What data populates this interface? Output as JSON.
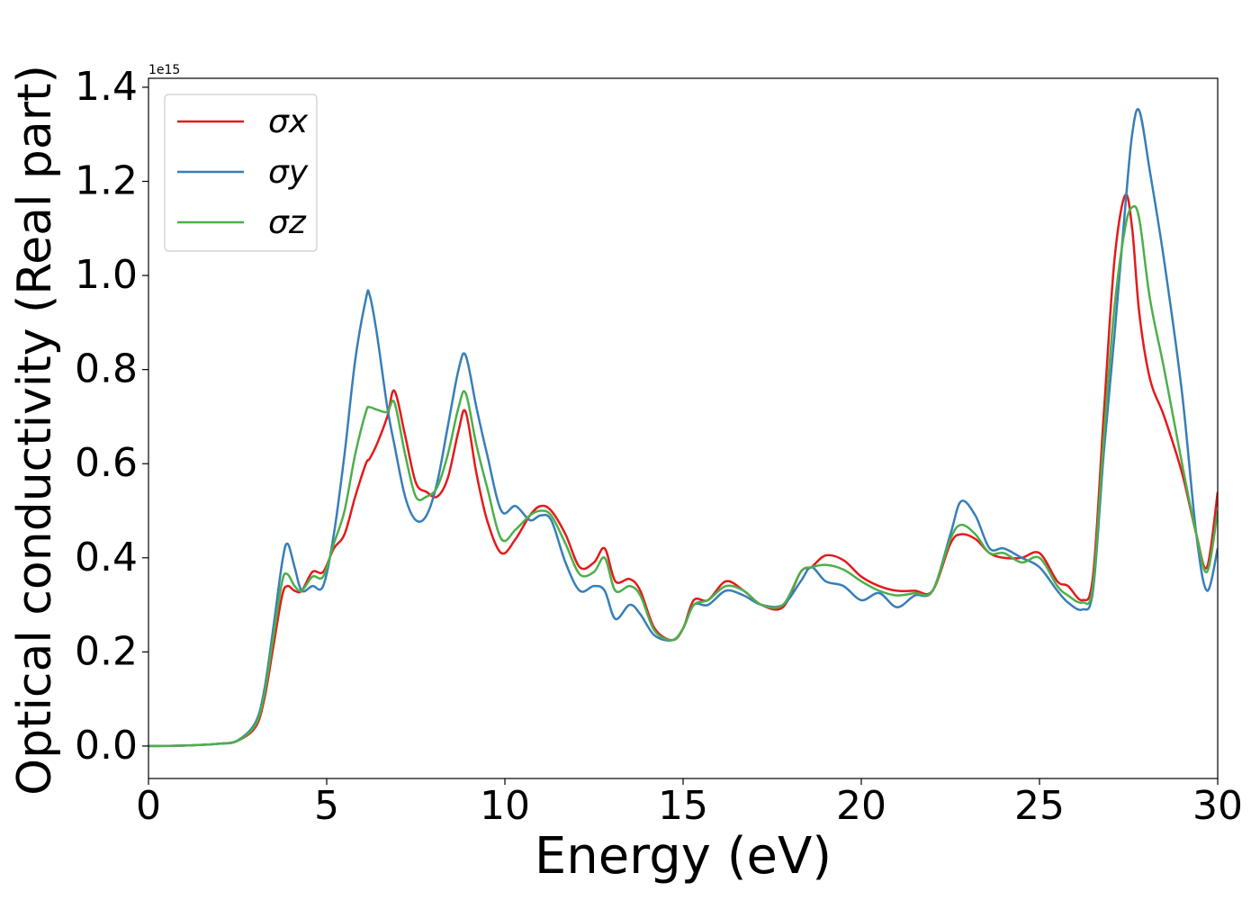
{
  "chart_data": {
    "type": "line",
    "xlabel": "Energy (eV)",
    "ylabel": "Optical conductivity (Real part)",
    "y_offset_label": "1e15",
    "xlim": [
      0,
      30
    ],
    "ylim": [
      -0.069,
      1.419
    ],
    "xticks": [
      0,
      5,
      10,
      15,
      20,
      25,
      30
    ],
    "yticks": [
      {
        "value": 0,
        "label": "0.0"
      },
      0.2,
      0.4,
      0.6,
      0.8,
      {
        "value": 1,
        "label": "1.0"
      },
      1.2,
      1.4
    ],
    "grid": false,
    "legend": "upper left",
    "x": [
      0,
      1,
      2,
      2.5,
      3,
      3.25,
      3.5,
      3.75,
      3.9,
      4.1,
      4.3,
      4.6,
      4.9,
      5.2,
      5.5,
      5.8,
      6.1,
      6.2,
      6.4,
      6.7,
      6.9,
      7.2,
      7.5,
      7.8,
      8.1,
      8.4,
      8.7,
      8.9,
      9.2,
      9.5,
      9.9,
      10.3,
      10.7,
      11.0,
      11.3,
      11.7,
      12.1,
      12.5,
      12.8,
      13.1,
      13.5,
      13.8,
      14.2,
      14.7,
      15.0,
      15.3,
      15.7,
      16.2,
      16.7,
      17.2,
      17.8,
      18.3,
      18.6,
      19.0,
      19.5,
      20.0,
      20.5,
      21.0,
      21.5,
      22.0,
      22.5,
      22.8,
      23.2,
      23.6,
      24.0,
      24.5,
      25.0,
      25.5,
      25.8,
      26.2,
      26.5,
      26.8,
      27.1,
      27.4,
      27.6,
      27.8,
      28.1,
      28.5,
      29.0,
      29.4,
      29.7,
      30.0
    ],
    "series": [
      {
        "name": "σx",
        "color": "#e41a1c",
        "values": [
          0,
          0.001,
          0.005,
          0.011,
          0.04,
          0.1,
          0.21,
          0.32,
          0.34,
          0.33,
          0.33,
          0.37,
          0.37,
          0.42,
          0.45,
          0.53,
          0.6,
          0.61,
          0.64,
          0.7,
          0.755,
          0.66,
          0.56,
          0.54,
          0.53,
          0.57,
          0.67,
          0.71,
          0.58,
          0.48,
          0.41,
          0.44,
          0.49,
          0.51,
          0.5,
          0.45,
          0.38,
          0.39,
          0.42,
          0.35,
          0.355,
          0.33,
          0.25,
          0.225,
          0.25,
          0.31,
          0.31,
          0.35,
          0.33,
          0.3,
          0.295,
          0.37,
          0.38,
          0.405,
          0.395,
          0.36,
          0.34,
          0.33,
          0.33,
          0.33,
          0.43,
          0.45,
          0.44,
          0.41,
          0.4,
          0.4,
          0.41,
          0.35,
          0.34,
          0.31,
          0.36,
          0.7,
          1.03,
          1.17,
          1.1,
          0.92,
          0.78,
          0.7,
          0.58,
          0.45,
          0.38,
          0.54
        ]
      },
      {
        "name": "σy",
        "color": "#377eb8",
        "values": [
          0,
          0.001,
          0.005,
          0.012,
          0.05,
          0.12,
          0.25,
          0.39,
          0.43,
          0.38,
          0.33,
          0.34,
          0.34,
          0.45,
          0.62,
          0.82,
          0.95,
          0.96,
          0.88,
          0.72,
          0.64,
          0.53,
          0.48,
          0.49,
          0.56,
          0.68,
          0.8,
          0.83,
          0.72,
          0.62,
          0.5,
          0.51,
          0.48,
          0.49,
          0.48,
          0.39,
          0.33,
          0.34,
          0.33,
          0.27,
          0.3,
          0.28,
          0.235,
          0.225,
          0.25,
          0.3,
          0.3,
          0.33,
          0.32,
          0.3,
          0.3,
          0.35,
          0.38,
          0.35,
          0.34,
          0.31,
          0.325,
          0.295,
          0.32,
          0.33,
          0.45,
          0.52,
          0.49,
          0.42,
          0.42,
          0.4,
          0.38,
          0.33,
          0.305,
          0.29,
          0.33,
          0.62,
          0.87,
          1.14,
          1.3,
          1.35,
          1.22,
          1.03,
          0.75,
          0.45,
          0.33,
          0.42
        ]
      },
      {
        "name": "σz",
        "color": "#4daf4a",
        "values": [
          0,
          0.001,
          0.005,
          0.011,
          0.045,
          0.11,
          0.23,
          0.35,
          0.365,
          0.34,
          0.33,
          0.36,
          0.36,
          0.43,
          0.5,
          0.62,
          0.71,
          0.72,
          0.715,
          0.71,
          0.73,
          0.62,
          0.53,
          0.53,
          0.55,
          0.62,
          0.72,
          0.75,
          0.64,
          0.55,
          0.44,
          0.46,
          0.49,
          0.5,
          0.49,
          0.43,
          0.365,
          0.37,
          0.4,
          0.33,
          0.34,
          0.32,
          0.245,
          0.225,
          0.25,
          0.3,
          0.31,
          0.34,
          0.33,
          0.3,
          0.3,
          0.37,
          0.38,
          0.385,
          0.375,
          0.35,
          0.33,
          0.32,
          0.325,
          0.33,
          0.44,
          0.47,
          0.45,
          0.41,
          0.41,
          0.39,
          0.4,
          0.34,
          0.32,
          0.305,
          0.34,
          0.65,
          0.93,
          1.1,
          1.145,
          1.12,
          0.95,
          0.8,
          0.6,
          0.45,
          0.37,
          0.5
        ]
      }
    ]
  }
}
